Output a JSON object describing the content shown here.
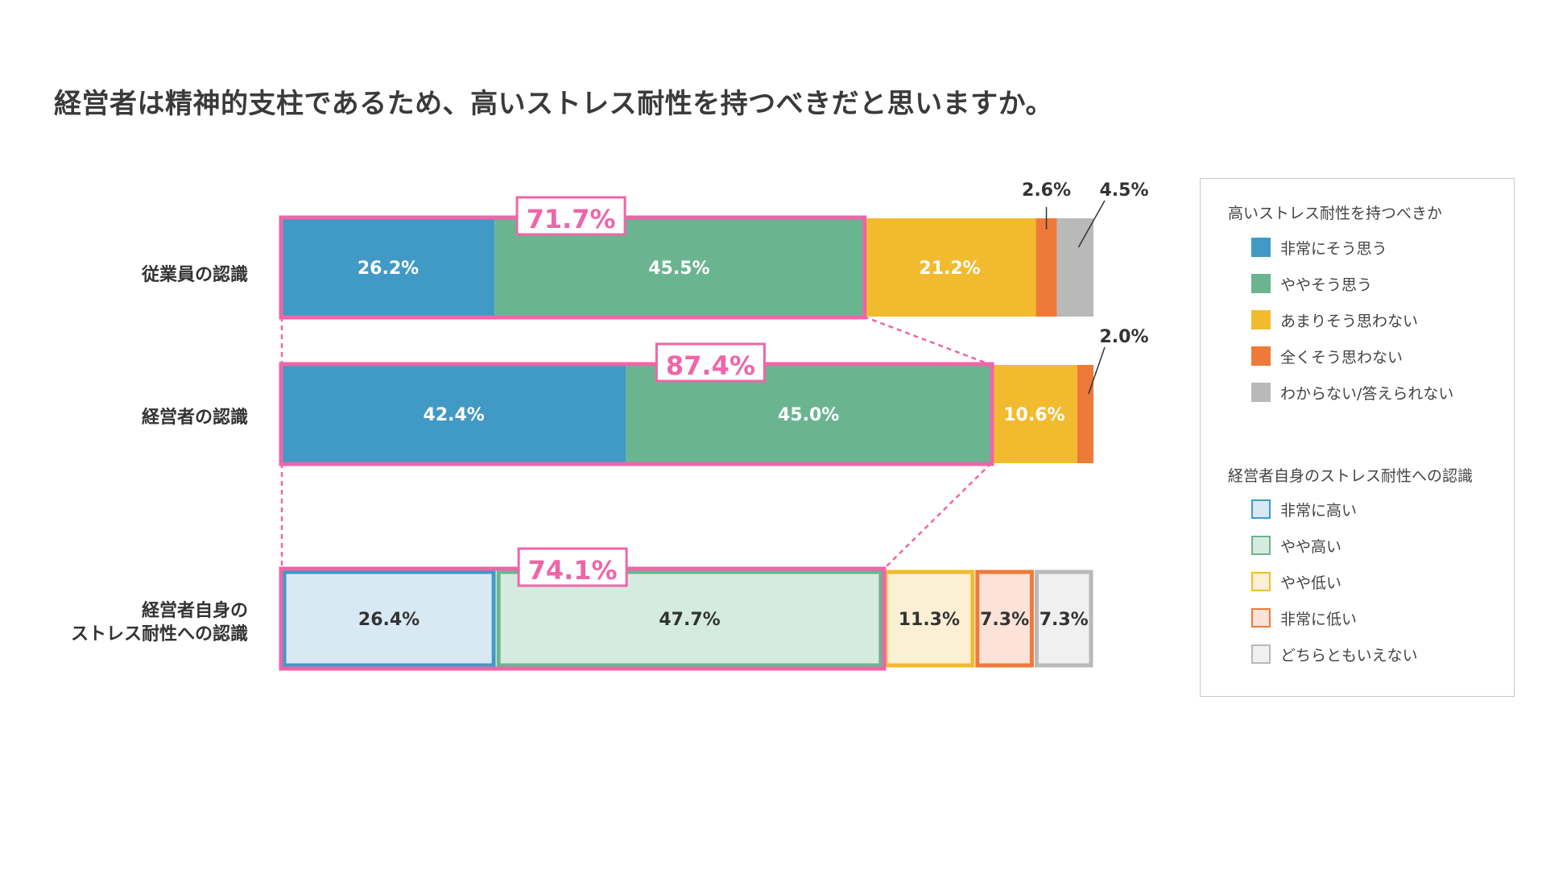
{
  "title": "経営者は精神的支柱であるため、高いストレス耐性を持つべきだと思いますか。",
  "chart_data": {
    "type": "bar",
    "orientation": "horizontal",
    "stacked": true,
    "normalized_to_100": true,
    "rows": [
      {
        "label": "従業員の認識",
        "values": [
          26.2,
          45.5,
          21.2,
          2.6,
          4.5
        ],
        "value_labels": [
          "26.2%",
          "45.5%",
          "21.2%",
          "2.6%",
          "4.5%"
        ],
        "highlight_label": "71.7%",
        "style": "filled",
        "legend_group": 0
      },
      {
        "label": "経営者の認識",
        "values": [
          42.4,
          45.0,
          10.6,
          2.0
        ],
        "value_labels": [
          "42.4%",
          "45.0%",
          "10.6%",
          "2.0%"
        ],
        "highlight_label": "87.4%",
        "style": "filled",
        "legend_group": 0
      },
      {
        "label_lines": [
          "経営者自身の",
          "ストレス耐性への認識"
        ],
        "values": [
          26.4,
          47.7,
          11.3,
          7.3,
          7.3
        ],
        "value_labels": [
          "26.4%",
          "47.7%",
          "11.3%",
          "7.3%",
          "7.3%"
        ],
        "highlight_label": "74.1%",
        "style": "outlined",
        "legend_group": 1
      }
    ],
    "legend": [
      {
        "title": "高いストレス耐性を持つべきか",
        "items": [
          {
            "label": "非常にそう思う",
            "color": "#419ac6"
          },
          {
            "label": "ややそう思う",
            "color": "#6ab590"
          },
          {
            "label": "あまりそう思わない",
            "color": "#f2bb2f"
          },
          {
            "label": "全くそう思わない",
            "color": "#ee7a3a"
          },
          {
            "label": "わからない/答えられない",
            "color": "#b9b9b9"
          }
        ]
      },
      {
        "title": "経営者自身のストレス耐性への認識",
        "items": [
          {
            "label": "非常に高い",
            "color": "#419ac6",
            "fill": "#d9e9f3"
          },
          {
            "label": "やや高い",
            "color": "#6ab590",
            "fill": "#d6ebe0"
          },
          {
            "label": "やや低い",
            "color": "#f2bb2f",
            "fill": "#fbefd4"
          },
          {
            "label": "非常に低い",
            "color": "#ee7a3a",
            "fill": "#fce2d8"
          },
          {
            "label": "どちらともいえない",
            "color": "#b9b9b9",
            "fill": "#f0f0f0"
          }
        ]
      }
    ],
    "legend_position": "right",
    "highlight_color": "#ee66a8",
    "grid": false
  }
}
